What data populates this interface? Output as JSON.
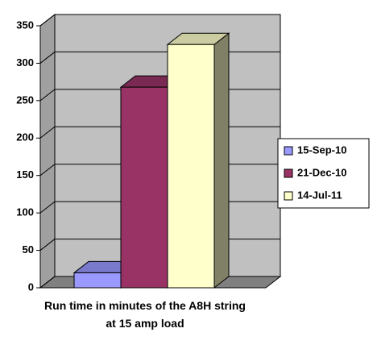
{
  "chart_data": {
    "type": "bar3d",
    "categories": [
      "Run time in minutes of the A8H string at 15 amp load"
    ],
    "series": [
      {
        "name": "15-Sep-10",
        "color": "#9999ff",
        "values": [
          20
        ]
      },
      {
        "name": "21-Dec-10",
        "color": "#993366",
        "values": [
          268
        ]
      },
      {
        "name": "14-Jul-11",
        "color": "#ffffcc",
        "values": [
          325
        ]
      }
    ],
    "ylim": [
      0,
      350
    ],
    "yticks": [
      0,
      50,
      100,
      150,
      200,
      250,
      300,
      350
    ],
    "grid": true,
    "legend": "right"
  }
}
